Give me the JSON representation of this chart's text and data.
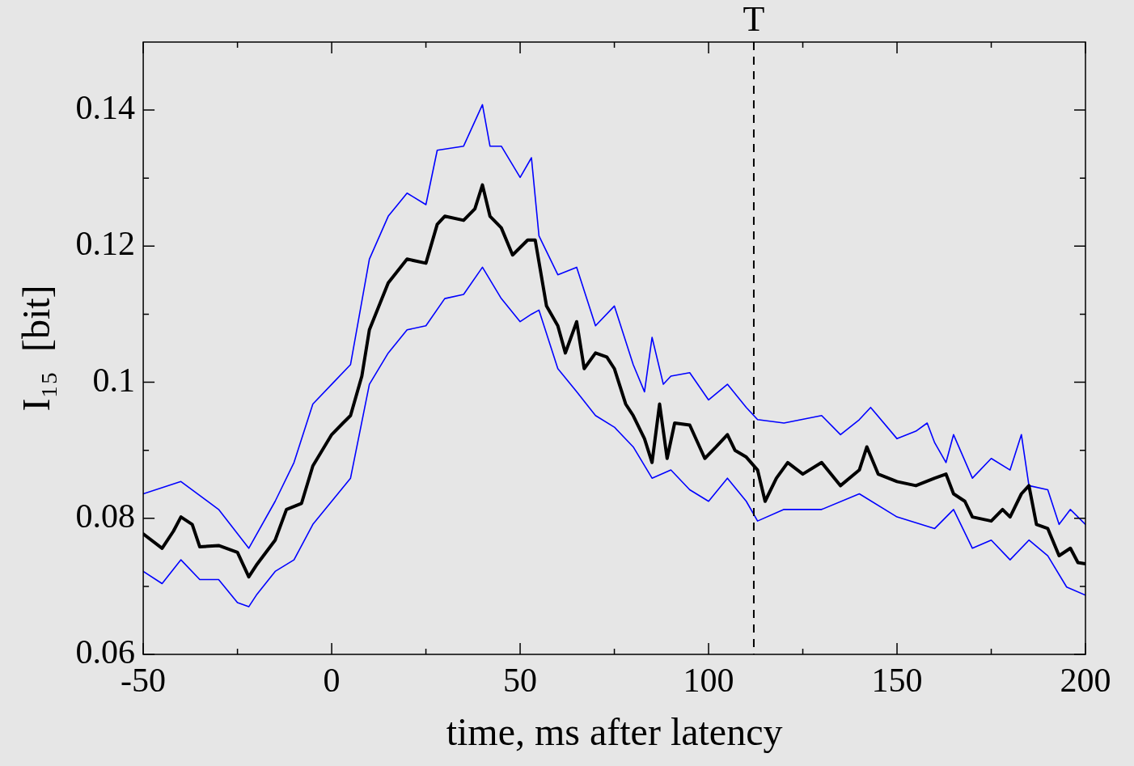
{
  "chart_data": {
    "type": "line",
    "xlabel": "time, ms after latency",
    "ylabel": "I₁₅  [bit]",
    "xlim": [
      -50,
      200
    ],
    "ylim": [
      0.06,
      0.15
    ],
    "xticks": [
      -50,
      {
        "value": -25,
        "label": null
      },
      0,
      {
        "value": 25,
        "label": null
      },
      50,
      {
        "value": 75,
        "label": null
      },
      100,
      {
        "value": 125,
        "label": null
      },
      150,
      {
        "value": 175,
        "label": null
      },
      200
    ],
    "yticks": [
      0.06,
      {
        "value": 0.07,
        "label": null
      },
      0.08,
      {
        "value": 0.09,
        "label": null
      },
      0.1,
      {
        "value": 0.11,
        "label": null
      },
      0.12,
      {
        "value": 0.13,
        "label": null
      },
      0.14
    ],
    "grid": false,
    "legend": false,
    "marker": "none",
    "line_style": "solid",
    "ref_lines": [
      {
        "axis": "x",
        "value": 112,
        "label": "T",
        "line_style": "dashed",
        "color": "#000000"
      }
    ],
    "series": [
      {
        "color": "#000000",
        "x": [
          -50,
          -45,
          -42,
          -40,
          -37,
          -35,
          -30,
          -25,
          -22,
          -20,
          -15,
          -12,
          -8,
          -5,
          0,
          3,
          5,
          8,
          10,
          15,
          20,
          25,
          28,
          30,
          35,
          38,
          40,
          42,
          45,
          48,
          50,
          52,
          54,
          57,
          60,
          62,
          65,
          67,
          70,
          73,
          75,
          78,
          80,
          83,
          85,
          87,
          89,
          91,
          95,
          99,
          102,
          105,
          107,
          110,
          113,
          115,
          118,
          121,
          125,
          130,
          135,
          140,
          142,
          145,
          150,
          155,
          160,
          163,
          165,
          168,
          170,
          175,
          178,
          180,
          183,
          185,
          187,
          190,
          193,
          196,
          198,
          200
        ],
        "values": [
          0.0777,
          0.0756,
          0.0781,
          0.0802,
          0.0791,
          0.0758,
          0.076,
          0.075,
          0.0714,
          0.0731,
          0.0768,
          0.0813,
          0.0822,
          0.0877,
          0.0923,
          0.094,
          0.0951,
          0.1009,
          0.1077,
          0.1146,
          0.1181,
          0.1175,
          0.1232,
          0.1244,
          0.1238,
          0.1255,
          0.129,
          0.1244,
          0.1227,
          0.1187,
          0.1198,
          0.1209,
          0.1209,
          0.1112,
          0.1083,
          0.1043,
          0.1089,
          0.102,
          0.1043,
          0.1037,
          0.102,
          0.0968,
          0.0951,
          0.0917,
          0.0882,
          0.0968,
          0.0888,
          0.094,
          0.0937,
          0.0888,
          0.0905,
          0.0923,
          0.09,
          0.089,
          0.0871,
          0.0825,
          0.0859,
          0.0882,
          0.0865,
          0.0882,
          0.0848,
          0.0871,
          0.0905,
          0.0865,
          0.0854,
          0.0848,
          0.0859,
          0.0865,
          0.0836,
          0.0825,
          0.0802,
          0.0796,
          0.0813,
          0.0802,
          0.0836,
          0.0848,
          0.0791,
          0.0785,
          0.0745,
          0.0756,
          0.0735,
          0.0733
        ]
      },
      {
        "color": "#0000ff",
        "x": [
          -50,
          -40,
          -30,
          -22,
          -15,
          -10,
          -5,
          0,
          5,
          10,
          15,
          20,
          25,
          28,
          35,
          40,
          42,
          45,
          50,
          53,
          55,
          60,
          65,
          70,
          75,
          80,
          83,
          85,
          88,
          90,
          95,
          100,
          105,
          110,
          113,
          120,
          130,
          135,
          140,
          143,
          150,
          155,
          158,
          160,
          163,
          165,
          170,
          175,
          180,
          183,
          185,
          190,
          193,
          196,
          200
        ],
        "values": [
          0.0836,
          0.0854,
          0.0813,
          0.0756,
          0.0825,
          0.0882,
          0.0968,
          0.0997,
          0.1026,
          0.1181,
          0.1244,
          0.1278,
          0.1261,
          0.1341,
          0.1347,
          0.1408,
          0.1347,
          0.1347,
          0.1301,
          0.133,
          0.1215,
          0.1158,
          0.1169,
          0.1083,
          0.1112,
          0.1026,
          0.0986,
          0.1066,
          0.0997,
          0.1009,
          0.1014,
          0.0974,
          0.0997,
          0.0963,
          0.0945,
          0.094,
          0.0951,
          0.0923,
          0.0945,
          0.0963,
          0.0917,
          0.0928,
          0.094,
          0.0911,
          0.0882,
          0.0923,
          0.0859,
          0.0888,
          0.0871,
          0.0923,
          0.0848,
          0.0842,
          0.0791,
          0.0813,
          0.0791
        ]
      },
      {
        "color": "#0000ff",
        "x": [
          -50,
          -45,
          -40,
          -35,
          -30,
          -25,
          -22,
          -20,
          -15,
          -10,
          -5,
          0,
          5,
          10,
          15,
          20,
          25,
          30,
          35,
          40,
          45,
          50,
          53,
          55,
          60,
          65,
          70,
          75,
          80,
          85,
          90,
          95,
          100,
          105,
          110,
          113,
          120,
          130,
          140,
          150,
          160,
          165,
          170,
          175,
          180,
          185,
          190,
          195,
          200
        ],
        "values": [
          0.0722,
          0.0704,
          0.0739,
          0.071,
          0.071,
          0.0676,
          0.067,
          0.0687,
          0.0722,
          0.0739,
          0.0791,
          0.0825,
          0.0859,
          0.0997,
          0.1043,
          0.1077,
          0.1083,
          0.1123,
          0.1129,
          0.1169,
          0.1123,
          0.1089,
          0.11,
          0.1106,
          0.102,
          0.0986,
          0.0951,
          0.0934,
          0.0905,
          0.0859,
          0.0871,
          0.0842,
          0.0825,
          0.0859,
          0.0825,
          0.0796,
          0.0813,
          0.0813,
          0.0836,
          0.0802,
          0.0785,
          0.0813,
          0.0756,
          0.0768,
          0.0739,
          0.0768,
          0.0745,
          0.0699,
          0.0687
        ]
      }
    ]
  }
}
